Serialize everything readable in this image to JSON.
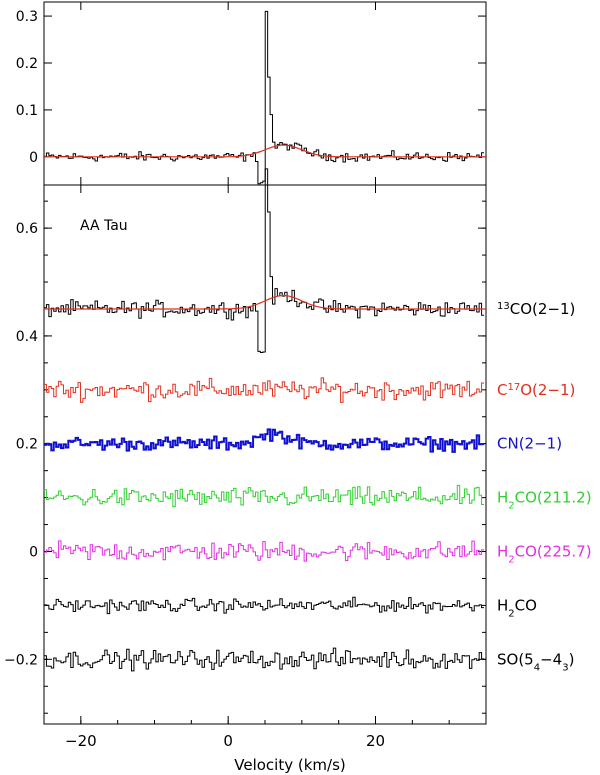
{
  "chart_data": [
    {
      "type": "line",
      "panel": "top",
      "xlabel": "",
      "ylabel": "",
      "xlim": [
        -25,
        35
      ],
      "ylim": [
        -0.06,
        0.33
      ],
      "yticks": [
        0,
        0.1,
        0.2,
        0.3
      ],
      "ytick_labels": [
        "0",
        "0.1",
        "0.2",
        "0.3"
      ],
      "series": [
        {
          "color": "#000000",
          "style": "histogram",
          "x": [
            -25,
            -24,
            -23,
            -22,
            -21,
            -20,
            -19,
            -18,
            -17,
            -16,
            -15,
            -14,
            -13,
            -12,
            -11,
            -10,
            -9,
            -8,
            -7,
            -6,
            -5,
            -4,
            -3,
            -2,
            -1,
            0,
            1,
            2,
            3,
            4,
            5,
            5.5,
            6,
            7,
            8,
            9,
            10,
            11,
            12,
            13,
            14,
            15,
            16,
            17,
            18,
            19,
            20,
            21,
            22,
            23,
            24,
            25,
            26,
            27,
            28,
            29,
            30,
            31,
            32,
            33,
            34,
            35
          ],
          "y": [
            0.0,
            0.01,
            -0.01,
            0.005,
            -0.01,
            0.0,
            0.01,
            -0.01,
            0.005,
            0.0,
            -0.01,
            0.01,
            0.0,
            -0.01,
            0.005,
            -0.02,
            0.01,
            0.0,
            -0.01,
            0.005,
            0.0,
            -0.01,
            0.02,
            0.0,
            -0.01,
            0.005,
            0.0,
            0.01,
            -0.01,
            -0.06,
            0.3,
            0.1,
            0.02,
            0.03,
            0.025,
            0.02,
            0.01,
            0.015,
            0.0,
            0.01,
            -0.01,
            0.005,
            0.0,
            0.01,
            -0.01,
            0.0,
            0.01,
            -0.005,
            0.0,
            0.01,
            -0.01,
            0.005,
            0.0,
            0.01,
            -0.01,
            0.0,
            0.005,
            -0.01,
            0.01,
            0.0,
            -0.005,
            0.0
          ]
        },
        {
          "color": "#e0301e",
          "style": "gaussian-fit",
          "gaussian": {
            "center": 7.5,
            "width": 3.5,
            "peak": 0.025,
            "baseline": 0.0
          }
        }
      ]
    },
    {
      "type": "line",
      "panel": "bottom",
      "xlabel": "Velocity (km/s)",
      "ylabel": "",
      "xlim": [
        -25,
        35
      ],
      "ylim": [
        -0.32,
        0.68
      ],
      "xticks": [
        -20,
        0,
        20
      ],
      "xtick_labels": [
        "−20",
        "0",
        "20"
      ],
      "yticks": [
        -0.2,
        0,
        0.2,
        0.4,
        0.6
      ],
      "ytick_labels": [
        "−0.2",
        "0",
        "0.2",
        "0.4",
        "0.6"
      ],
      "annotation": "AA Tau",
      "series": [
        {
          "label_main": "13",
          "label_prefix": "",
          "label_rest": "CO(2−1)",
          "label_type": "sup-prefix",
          "color": "#000000",
          "offset": 0.45,
          "noise": 0.012,
          "peak": {
            "center": 5,
            "height": 0.2,
            "dip": -0.08
          },
          "fit": {
            "center": 7.5,
            "width": 3.5,
            "peak": 0.025
          }
        },
        {
          "label_prefix": "C",
          "label_main": "17",
          "label_rest": "O(2−1)",
          "label_type": "sup-mid",
          "color": "#e0301e",
          "offset": 0.3,
          "noise": 0.015
        },
        {
          "label_prefix": "",
          "label_main": "",
          "label_rest": "CN(2−1)",
          "label_type": "plain",
          "color": "#1010d0",
          "offset": 0.2,
          "noise": 0.01,
          "bump": {
            "center": 6,
            "width": 2.5,
            "height": 0.02
          },
          "bold": true
        },
        {
          "label_prefix": "H",
          "label_main": "2",
          "label_rest": "CO(211.2)",
          "label_type": "sub-mid",
          "color": "#30d030",
          "offset": 0.1,
          "noise": 0.015
        },
        {
          "label_prefix": "H",
          "label_main": "2",
          "label_rest": "CO(225.7)",
          "label_type": "sub-mid",
          "color": "#e030e0",
          "offset": 0.0,
          "noise": 0.015
        },
        {
          "label_prefix": "H",
          "label_main": "2",
          "label_rest": "CO",
          "label_type": "sub-mid",
          "color": "#000000",
          "offset": -0.1,
          "noise": 0.01
        },
        {
          "label_prefix": "SO(5",
          "label_main": "4",
          "label_rest": "−4",
          "label_tail_sub": "3",
          "label_tail": ")",
          "label_type": "so",
          "color": "#000000",
          "offset": -0.2,
          "noise": 0.014
        }
      ]
    }
  ]
}
